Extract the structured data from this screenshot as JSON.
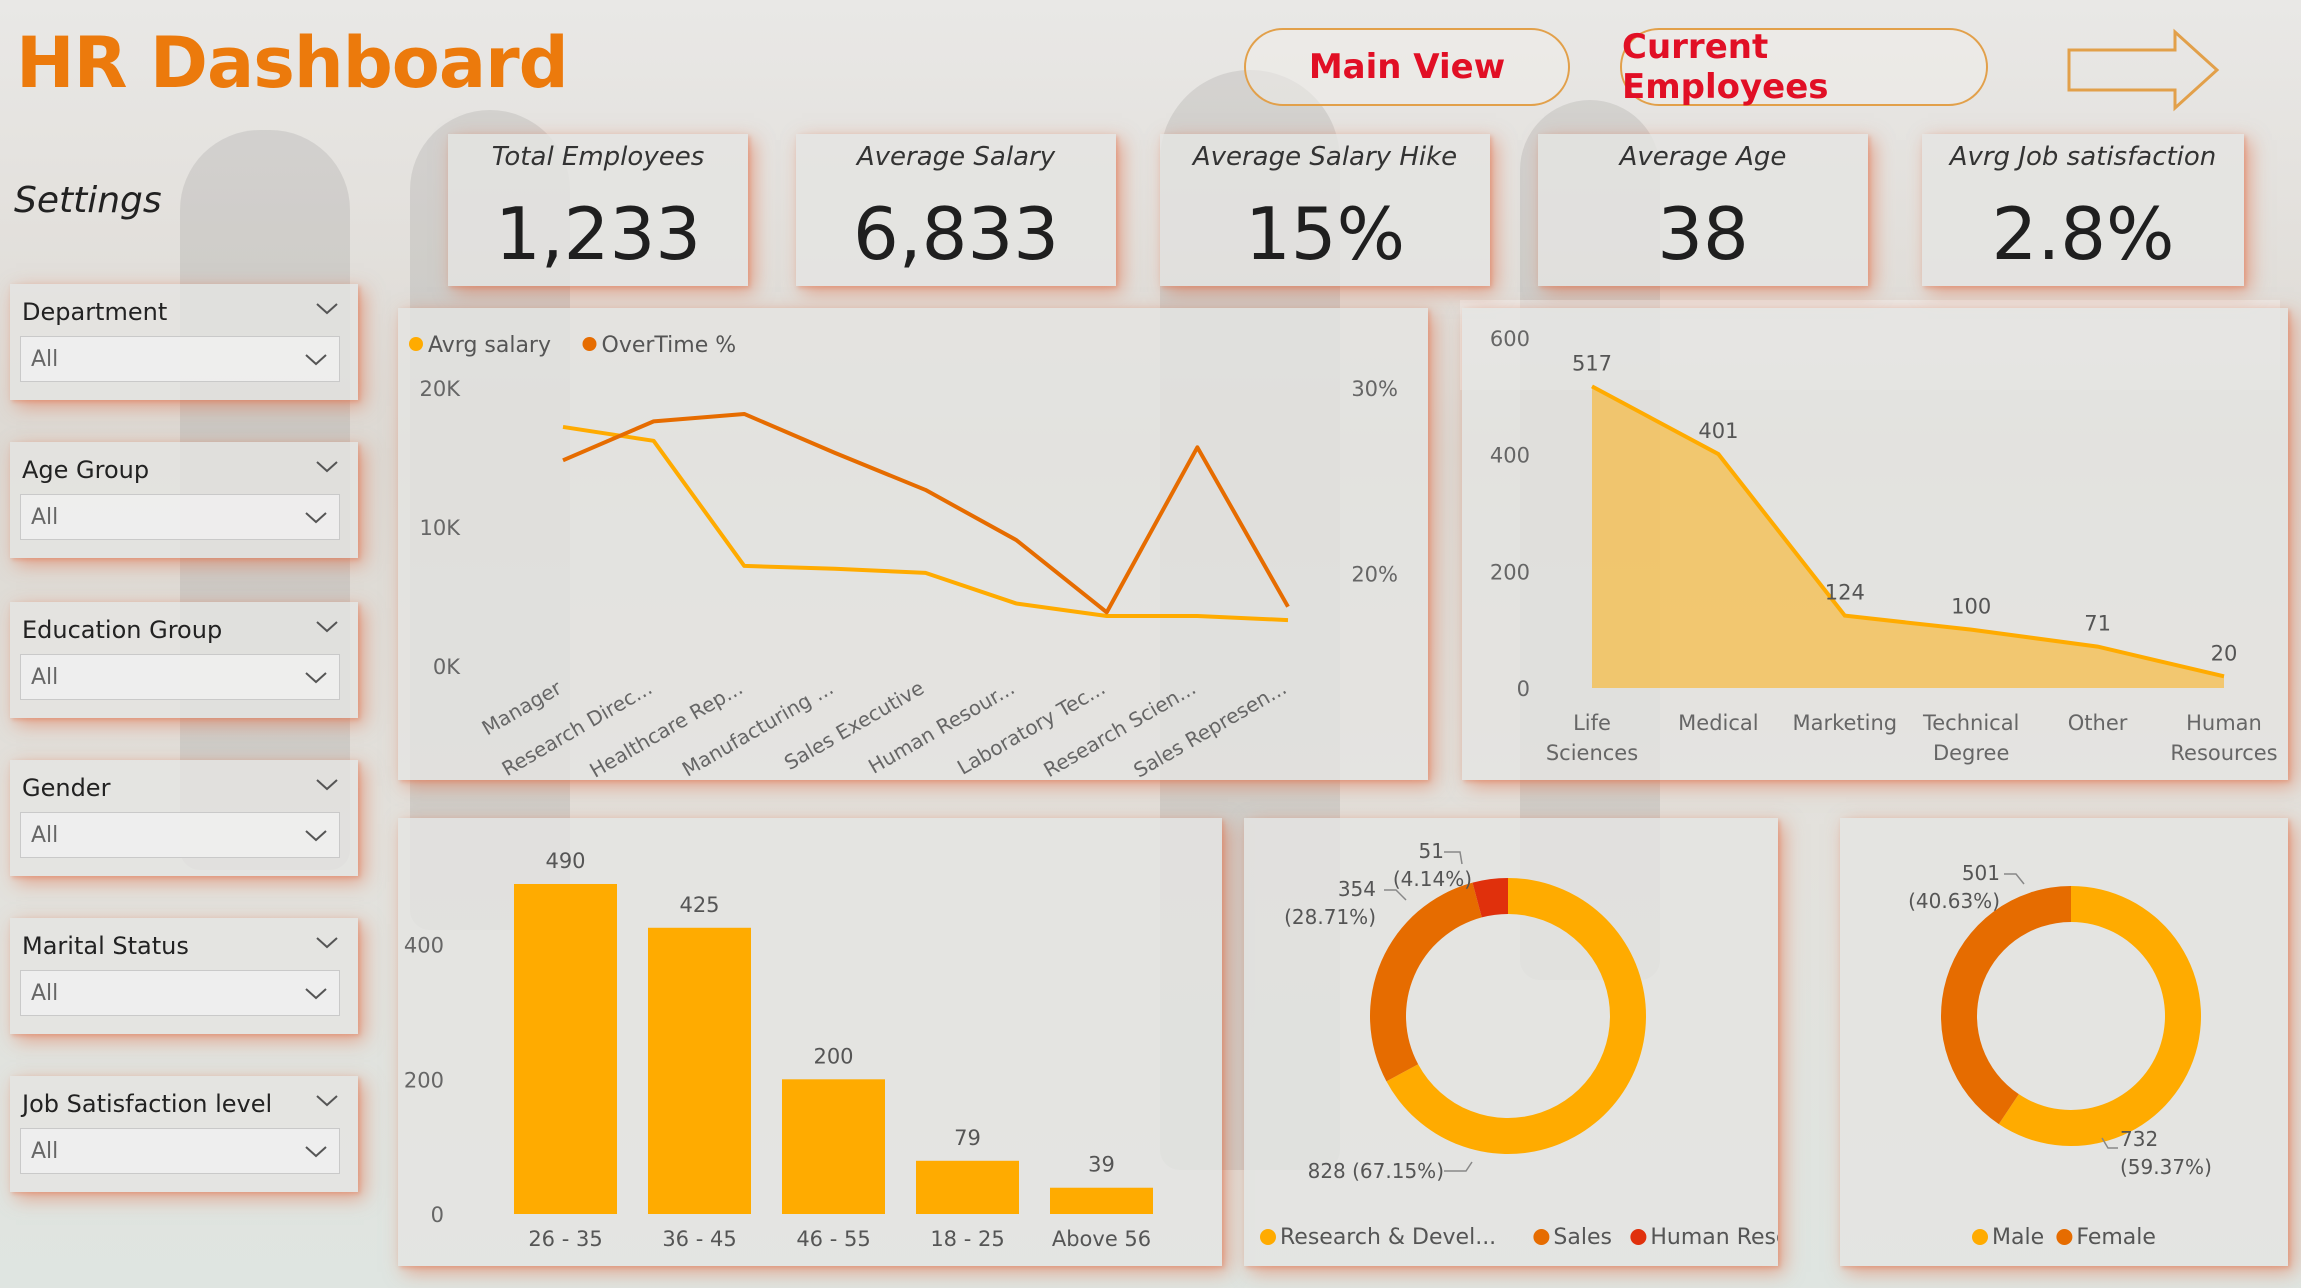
{
  "header": {
    "title": "HR Dashboard",
    "settings_label": "Settings",
    "nav": {
      "main_view": "Main View",
      "current_employees": "Current Employees"
    }
  },
  "colors": {
    "accent": "#ec7a0c",
    "primary_series": "#ffab00",
    "secondary_series": "#e66c00",
    "tertiary_series": "#e0300c",
    "nav_text": "#e10f25"
  },
  "kpis": [
    {
      "label": "Total Employees",
      "value": "1,233"
    },
    {
      "label": "Average Salary",
      "value": "6,833"
    },
    {
      "label": "Average Salary Hike",
      "value": "15%"
    },
    {
      "label": "Average Age",
      "value": "38"
    },
    {
      "label": "Avrg Job satisfaction",
      "value": "2.8%"
    }
  ],
  "slicers": [
    {
      "title": "Department",
      "value": "All"
    },
    {
      "title": "Age Group",
      "value": "All"
    },
    {
      "title": "Education Group",
      "value": "All"
    },
    {
      "title": "Gender",
      "value": "All"
    },
    {
      "title": "Marital Status",
      "value": "All"
    },
    {
      "title": "Job Satisfaction level",
      "value": "All"
    }
  ],
  "chart_data": [
    {
      "type": "line",
      "title": "",
      "categories": [
        "Manager",
        "Research Direc...",
        "Healthcare Rep...",
        "Manufacturing ...",
        "Sales Executive",
        "Human Resour...",
        "Laboratory Tec...",
        "Research Scien...",
        "Sales Represen..."
      ],
      "series": [
        {
          "name": "Avrg salary",
          "axis": "left",
          "values": [
            17200,
            16200,
            7200,
            7000,
            6700,
            4500,
            3600,
            3600,
            3300
          ]
        },
        {
          "name": "OverTime %",
          "axis": "right",
          "values": [
            26.1,
            28.2,
            28.6,
            26.5,
            24.5,
            21.8,
            17.9,
            26.8,
            18.2
          ]
        }
      ],
      "y_left": {
        "ticks": [
          "20K",
          "10K",
          "0K"
        ],
        "range": [
          0,
          20000
        ]
      },
      "y_right": {
        "ticks": [
          "30%",
          "20%"
        ],
        "range": [
          15,
          30
        ]
      },
      "legend": "top-left"
    },
    {
      "type": "area",
      "title": "",
      "categories": [
        [
          "Life",
          "Sciences"
        ],
        [
          "Medical"
        ],
        [
          "Marketing"
        ],
        [
          "Technical",
          "Degree"
        ],
        [
          "Other"
        ],
        [
          "Human",
          "Resources"
        ]
      ],
      "values": [
        517,
        401,
        124,
        100,
        71,
        20
      ],
      "y_ticks": [
        "600",
        "400",
        "200",
        "0"
      ],
      "ylim": [
        0,
        600
      ]
    },
    {
      "type": "bar",
      "title": "",
      "categories": [
        "26 - 35",
        "36 - 45",
        "46 - 55",
        "18 - 25",
        "Above 56"
      ],
      "values": [
        490,
        425,
        200,
        79,
        39
      ],
      "y_ticks": [
        "400",
        "200",
        "0"
      ],
      "ylim": [
        0,
        490
      ]
    },
    {
      "type": "pie",
      "title": "",
      "slices": [
        {
          "name": "Research & Devel...",
          "value": 828,
          "label_value": "828 (67.15%)"
        },
        {
          "name": "Sales",
          "value": 354,
          "label_value": "354",
          "label_pct": "(28.71%)"
        },
        {
          "name": "Human Reso...",
          "value": 51,
          "label_value": "51",
          "label_pct": "(4.14%)"
        }
      ],
      "legend": "bottom"
    },
    {
      "type": "pie",
      "title": "",
      "slices": [
        {
          "name": "Male",
          "value": 732,
          "label_value": "732",
          "label_pct": "(59.37%)"
        },
        {
          "name": "Female",
          "value": 501,
          "label_value": "501",
          "label_pct": "(40.63%)"
        }
      ],
      "legend": "bottom"
    }
  ]
}
